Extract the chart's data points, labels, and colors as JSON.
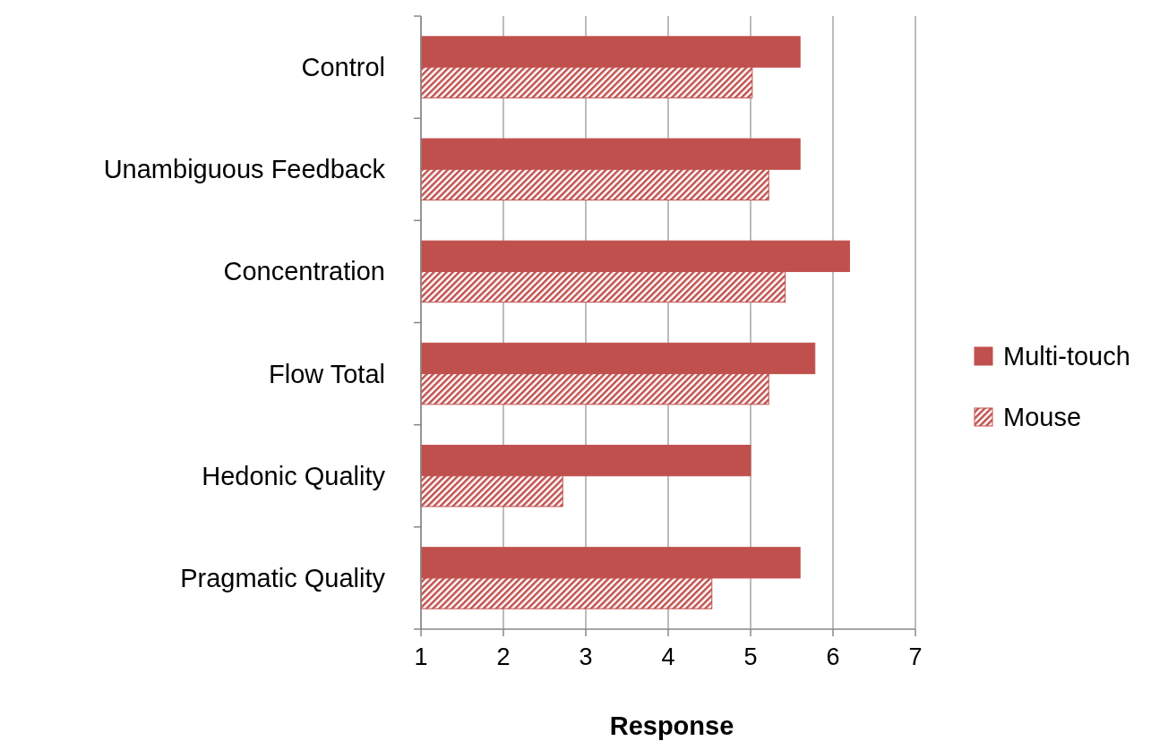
{
  "chart_data": {
    "type": "bar",
    "orientation": "horizontal",
    "xlabel": "Response",
    "categories": [
      "Control",
      "Unambiguous Feedback",
      "Concentration",
      "Flow Total",
      "Hedonic Quality",
      "Pragmatic Quality"
    ],
    "series": [
      {
        "name": "Multi-touch",
        "color": "#c0504d",
        "values": [
          5.6,
          5.6,
          6.2,
          5.78,
          5.0,
          5.6
        ]
      },
      {
        "name": "Mouse",
        "color": "#c0504d",
        "values": [
          5.02,
          5.22,
          5.42,
          5.22,
          2.72,
          4.53
        ]
      }
    ],
    "xlim": [
      1,
      7
    ],
    "xticks": [
      1,
      2,
      3,
      4,
      5,
      6,
      7
    ],
    "grid": "x",
    "legend": "right"
  }
}
